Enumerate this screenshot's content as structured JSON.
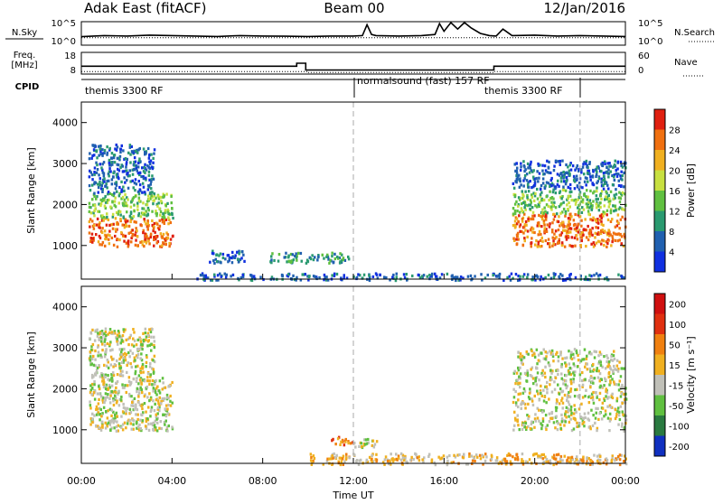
{
  "header": {
    "title": "Adak East (fitACF)",
    "beam": "Beam 00",
    "date": "12/Jan/2016"
  },
  "chart_data": [
    {
      "type": "line",
      "panel": "noise",
      "left_label": "N.Sky",
      "right_label": "N.Search",
      "left_ticks": [
        "10^5",
        "10^0"
      ],
      "right_ticks": [
        "10^5",
        "10^0"
      ],
      "series": [
        {
          "name": "N.Sky",
          "style": "solid",
          "x": [
            0,
            1,
            2,
            3,
            4,
            5,
            6,
            7,
            8,
            9,
            10,
            11,
            12,
            12.4,
            12.6,
            12.8,
            13,
            14,
            15,
            15.6,
            15.8,
            16,
            16.3,
            16.6,
            16.9,
            17.2,
            17.6,
            18,
            18.3,
            18.6,
            19,
            20,
            21,
            22,
            23,
            24
          ],
          "y": [
            0.35,
            0.4,
            0.38,
            0.42,
            0.4,
            0.38,
            0.36,
            0.4,
            0.38,
            0.37,
            0.36,
            0.38,
            0.38,
            0.4,
            0.9,
            0.45,
            0.4,
            0.38,
            0.4,
            0.45,
            0.95,
            0.6,
            1.0,
            0.7,
            1.0,
            0.75,
            0.5,
            0.4,
            0.38,
            0.7,
            0.4,
            0.42,
            0.38,
            0.4,
            0.38,
            0.36
          ]
        },
        {
          "name": "N.Search",
          "style": "dotted",
          "x": [
            0,
            24
          ],
          "y": [
            0.3,
            0.3
          ]
        }
      ]
    },
    {
      "type": "line",
      "panel": "frequency",
      "left_label": "Freq.",
      "left_unit": "[MHz]",
      "right_label": "Nave",
      "left_ticks": [
        "18",
        "8"
      ],
      "right_ticks": [
        "60",
        "0"
      ],
      "series": [
        {
          "name": "Freq.",
          "style": "solid",
          "x": [
            0,
            9.5,
            9.5,
            9.9,
            9.9,
            18.2,
            18.2,
            24
          ],
          "y": [
            11.5,
            11.5,
            13,
            13,
            9.6,
            9.6,
            11.5,
            11.5
          ]
        },
        {
          "name": "Nave",
          "style": "dotted",
          "x": [
            0,
            10,
            10,
            18.2,
            18.2,
            24
          ],
          "y": [
            8.8,
            8.8,
            8.3,
            8.3,
            8.8,
            8.8
          ]
        }
      ]
    },
    {
      "type": "heatmap",
      "panel": "power",
      "ylabel": "Slant Range [km]",
      "ylim": [
        180,
        4500
      ],
      "yticks": [
        1000,
        2000,
        3000,
        4000
      ],
      "colorbar_label": "Power [dB]",
      "colorbar_ticks": [
        "4",
        "8",
        "12",
        "16",
        "20",
        "24",
        "28"
      ],
      "palette": [
        "#1030e0",
        "#2060b0",
        "#2a9a70",
        "#60c040",
        "#c8e040",
        "#f0b020",
        "#f07010",
        "#e02010"
      ],
      "regions": [
        {
          "t": [
            0.3,
            4.0
          ],
          "r": [
            1000,
            1700
          ],
          "level": 6
        },
        {
          "t": [
            0.3,
            4.0
          ],
          "r": [
            1700,
            2300
          ],
          "level": 3
        },
        {
          "t": [
            0.3,
            3.2
          ],
          "r": [
            2300,
            3500
          ],
          "level": 1
        },
        {
          "t": [
            8.3,
            11.8
          ],
          "r": [
            600,
            850
          ],
          "level": 2
        },
        {
          "t": [
            5.5,
            7.2
          ],
          "r": [
            600,
            900
          ],
          "level": 1
        },
        {
          "t": [
            19.0,
            24.0
          ],
          "r": [
            1000,
            1800
          ],
          "level": 6
        },
        {
          "t": [
            19.0,
            24.0
          ],
          "r": [
            1800,
            2400
          ],
          "level": 3
        },
        {
          "t": [
            19.0,
            24.0
          ],
          "r": [
            2400,
            3100
          ],
          "level": 1
        },
        {
          "t": [
            5.0,
            24.0
          ],
          "r": [
            180,
            350
          ],
          "level": 1
        }
      ]
    },
    {
      "type": "heatmap",
      "panel": "velocity",
      "ylabel": "Slant Range [km]",
      "ylim": [
        180,
        4500
      ],
      "yticks": [
        1000,
        2000,
        3000,
        4000
      ],
      "colorbar_label": "Velocity [m s⁻¹]",
      "colorbar_ticks": [
        "200",
        "100",
        "50",
        "15",
        "-15",
        "-50",
        "-100",
        "-200"
      ],
      "palette": [
        "#1030c0",
        "#2a7a40",
        "#60c040",
        "#c0c0b8",
        "#f0b020",
        "#f08010",
        "#e03010",
        "#d01010"
      ],
      "regions": [
        {
          "t": [
            0.3,
            4.0
          ],
          "r": [
            1000,
            2300
          ],
          "level": 3
        },
        {
          "t": [
            0.3,
            3.2
          ],
          "r": [
            2300,
            3500
          ],
          "level": 3
        },
        {
          "t": [
            11.0,
            12.0
          ],
          "r": [
            650,
            850
          ],
          "level": 5
        },
        {
          "t": [
            12.0,
            13.0
          ],
          "r": [
            600,
            800
          ],
          "level": 3
        },
        {
          "t": [
            19.0,
            24.0
          ],
          "r": [
            1000,
            3000
          ],
          "level": 3
        },
        {
          "t": [
            10.0,
            24.0
          ],
          "r": [
            180,
            450
          ],
          "level": 4
        }
      ]
    }
  ],
  "time_axis": {
    "ticks": [
      "00:00",
      "04:00",
      "08:00",
      "12:00",
      "16:00",
      "20:00",
      "00:00"
    ],
    "label": "Time UT"
  },
  "cpid": {
    "label": "CPID",
    "segments": [
      {
        "text": "themis 3300 RF"
      },
      {
        "text": "normalsound (fast) 157 RF"
      },
      {
        "text": "themis 3300 RF"
      }
    ]
  }
}
